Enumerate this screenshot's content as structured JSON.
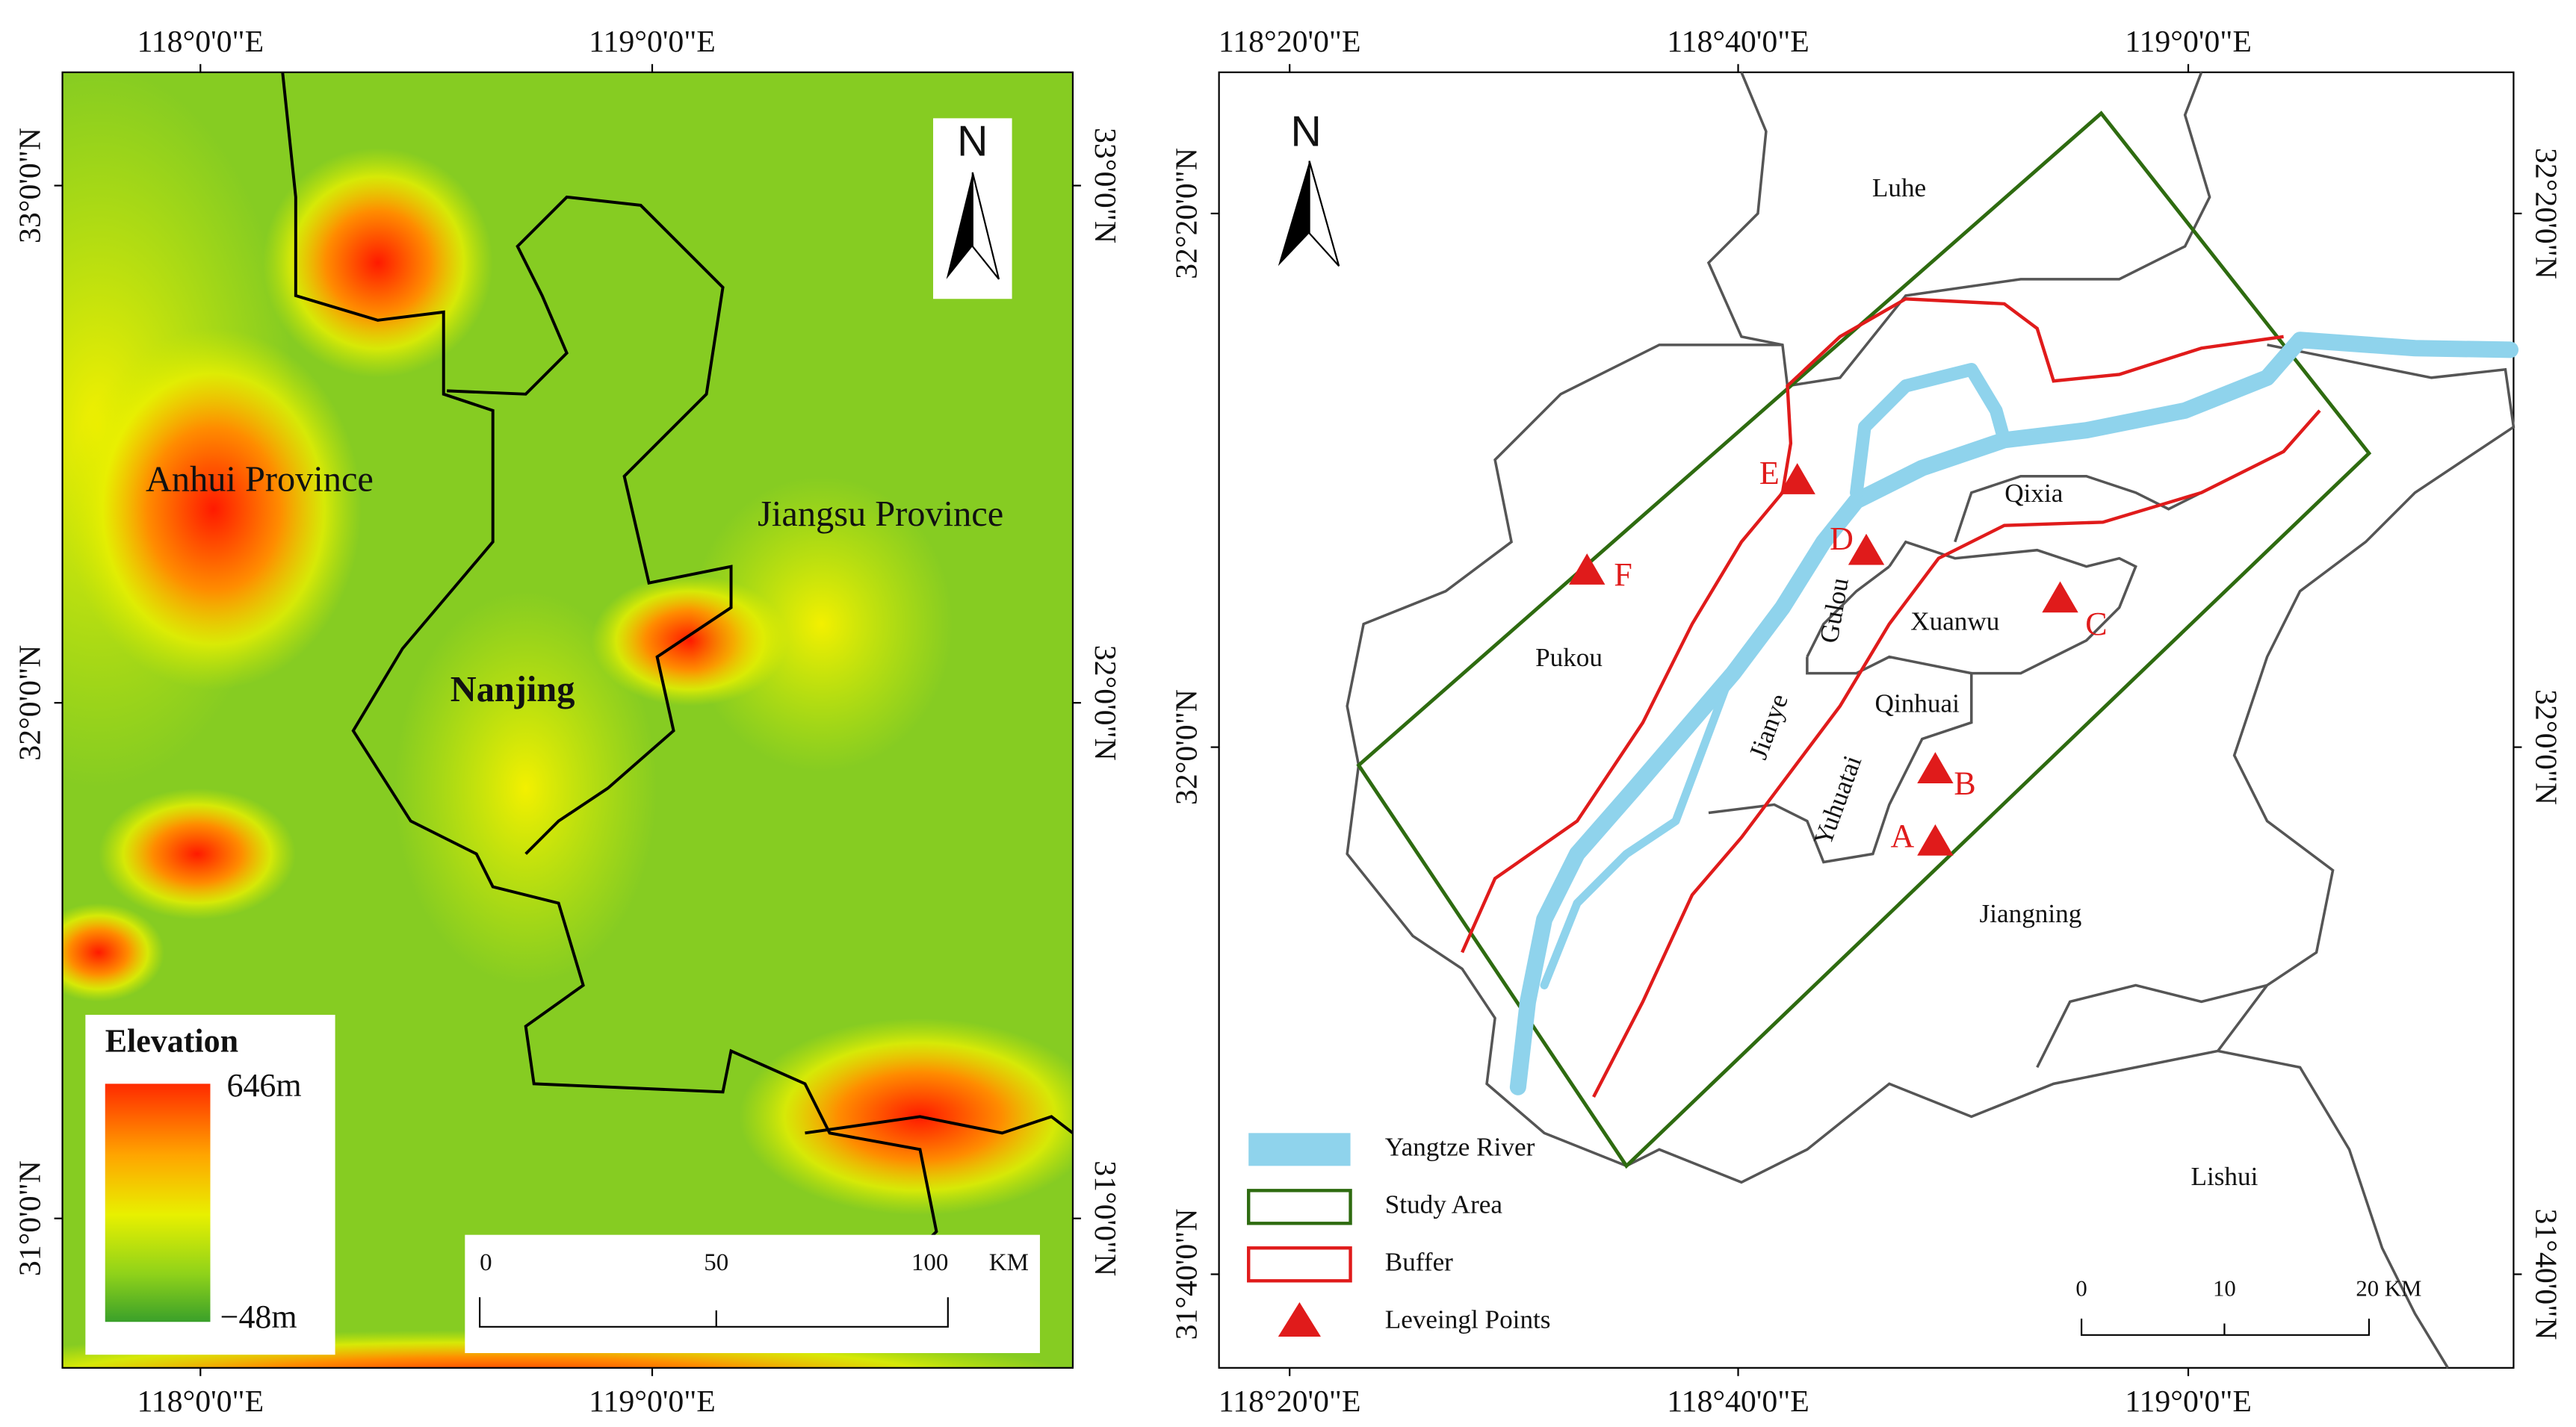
{
  "left_map": {
    "lon_labels": [
      "118°0'0\"E",
      "119°0'0\"E"
    ],
    "lat_labels": [
      "33°0'0\"N",
      "32°0'0\"N",
      "31°0'0\"N"
    ],
    "places": [
      "Anhui Province",
      "Jiangsu Province",
      "Nanjing"
    ],
    "north": "N",
    "legend": {
      "title": "Elevation",
      "max": "646m",
      "min": "−48m"
    },
    "scale": [
      "0",
      "50",
      "100",
      "KM"
    ]
  },
  "right_map": {
    "lon_labels": [
      "118°20'0\"E",
      "118°40'0\"E",
      "119°0'0\"E"
    ],
    "lat_labels": [
      "32°20'0\"N",
      "32°0'0\"N",
      "31°40'0\"N"
    ],
    "districts": [
      "Luhe",
      "Pukou",
      "Qixia",
      "Xuanwu",
      "Gulou",
      "Jianye",
      "Qinhuai",
      "Yuhuatai",
      "Jiangning",
      "Lishui"
    ],
    "points": [
      "A",
      "B",
      "C",
      "D",
      "E",
      "F"
    ],
    "north": "N",
    "legend": [
      "Yangtze River",
      "Study Area",
      "Buffer",
      "Leveingl Points"
    ],
    "scale": [
      "0",
      "10",
      "20 KM"
    ]
  }
}
